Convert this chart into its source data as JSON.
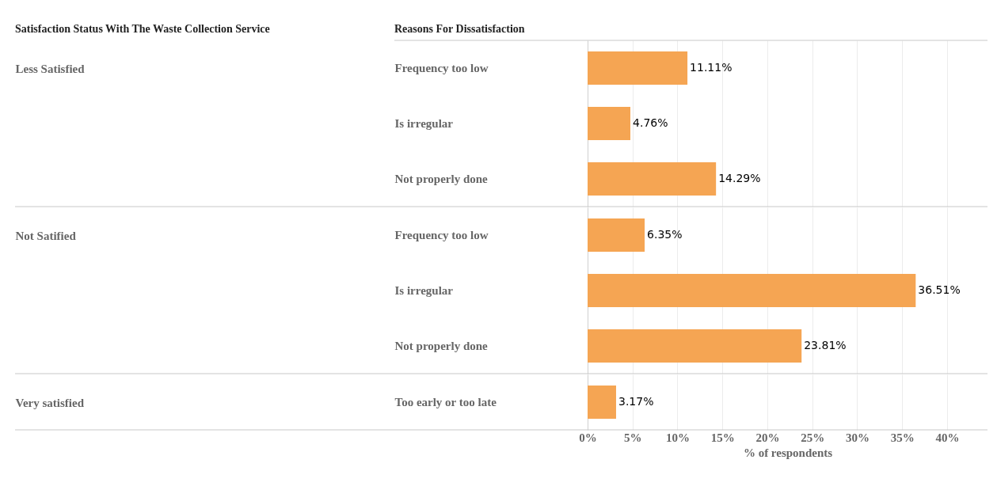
{
  "chart_data": [
    {
      "type": "bar",
      "orientation": "horizontal",
      "ylabel": "Less Satisfied",
      "annotations": [
        "Satisfaction Status With The Waste Collection Service",
        "Reasons For Dissatisfaction"
      ],
      "categories": [
        "Frequency too low",
        "Is irregular",
        "Not properly done"
      ],
      "values": [
        11.11,
        4.76,
        14.29
      ],
      "value_labels": [
        "11.11%",
        "4.76%",
        "14.29%"
      ],
      "color": "#f5a553",
      "xlim": [
        0,
        44.5
      ],
      "xticks": [
        0,
        5,
        10,
        15,
        20,
        25,
        30,
        35,
        40
      ],
      "grid": "x",
      "tick_labels": "y"
    },
    {
      "type": "bar",
      "orientation": "horizontal",
      "ylabel": "Not Satified",
      "categories": [
        "Frequency too low",
        "Is irregular",
        "Not properly done"
      ],
      "values": [
        6.35,
        36.51,
        23.81
      ],
      "value_labels": [
        "6.35%",
        "36.51%",
        "23.81%"
      ],
      "color": "#f5a553",
      "xlim": [
        0,
        44.5
      ],
      "xticks": [
        0,
        5,
        10,
        15,
        20,
        25,
        30,
        35,
        40
      ],
      "grid": "x",
      "tick_labels": "y"
    },
    {
      "type": "bar",
      "orientation": "horizontal",
      "ylabel": "Very satisfied",
      "xlabel": "% of respondents",
      "categories": [
        "Too early or too late"
      ],
      "values": [
        3.17
      ],
      "value_labels": [
        "3.17%"
      ],
      "color": "#f5a553",
      "xlim": [
        0,
        44.5
      ],
      "xticks": [
        {
          "value": 0,
          "label": "0%"
        },
        {
          "value": 5,
          "label": "5%"
        },
        {
          "value": 10,
          "label": "10%"
        },
        {
          "value": 15,
          "label": "15%"
        },
        {
          "value": 20,
          "label": "20%"
        },
        {
          "value": 25,
          "label": "25%"
        },
        {
          "value": 30,
          "label": "30%"
        },
        {
          "value": 35,
          "label": "35%"
        },
        {
          "value": 40,
          "label": "40%"
        }
      ],
      "grid": "x"
    }
  ]
}
